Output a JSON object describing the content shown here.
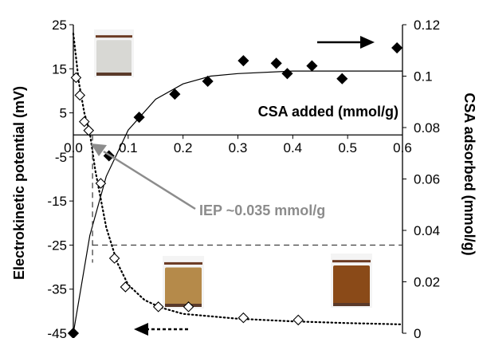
{
  "chart_data": {
    "type": "scatter",
    "x_axis": {
      "label": "CSA added (mmol/g)",
      "range": [
        0,
        0.6
      ],
      "ticks": [
        0.0,
        0.1,
        0.2,
        0.3,
        0.4,
        0.5,
        0.6
      ],
      "tick_labels": [
        "0.0",
        "0.1",
        "0.2",
        "0.3",
        "0.4",
        "0.5",
        "0.6"
      ],
      "ticks_at_y": 0
    },
    "y_left": {
      "label": "Electrokinetic potential (mV)",
      "range": [
        -45,
        25
      ],
      "ticks": [
        -45,
        -35,
        -25,
        -15,
        -5,
        5,
        15,
        25
      ],
      "tick_labels": [
        "-45",
        "-35",
        "-25",
        "-15",
        "-5",
        "5",
        "15",
        "25"
      ]
    },
    "y_right": {
      "label": "CSA adsorbed (mmol/g)",
      "range": [
        0,
        0.12
      ],
      "ticks": [
        0,
        0.02,
        0.04,
        0.06,
        0.08,
        0.1,
        0.12
      ],
      "tick_labels": [
        "0",
        "0.02",
        "0.04",
        "0.06",
        "0.08",
        "0.1",
        "0.12"
      ]
    },
    "series": [
      {
        "marker": "filled-diamond",
        "axis": "right",
        "color": "#000000",
        "x": [
          0.0,
          0.065,
          0.12,
          0.185,
          0.245,
          0.31,
          0.37,
          0.39,
          0.435,
          0.49,
          0.59
        ],
        "y": [
          0.0,
          0.069,
          0.084,
          0.093,
          0.098,
          0.106,
          0.105,
          0.101,
          0.104,
          0.099,
          0.111
        ],
        "fit": {
          "style": "solid",
          "x": [
            0.0,
            0.03,
            0.06,
            0.1,
            0.15,
            0.2,
            0.25,
            0.3,
            0.4,
            0.5,
            0.6
          ],
          "y": [
            0.0,
            0.038,
            0.061,
            0.079,
            0.091,
            0.097,
            0.1,
            0.101,
            0.102,
            0.102,
            0.102
          ]
        }
      },
      {
        "marker": "open-diamond",
        "axis": "left",
        "color": "#000000",
        "x": [
          0.005,
          0.012,
          0.02,
          0.028,
          0.05,
          0.075,
          0.095,
          0.155,
          0.21,
          0.31,
          0.41
        ],
        "y": [
          13,
          9,
          3,
          1,
          -11,
          -28,
          -34.5,
          -39,
          -39,
          -41.5,
          -42
        ],
        "fit": {
          "style": "dotted",
          "x": [
            0.0,
            0.01,
            0.02,
            0.03,
            0.04,
            0.06,
            0.08,
            0.1,
            0.13,
            0.16,
            0.2,
            0.3,
            0.4,
            0.5,
            0.6
          ],
          "y": [
            23,
            12,
            5,
            0.5,
            -8,
            -21,
            -29,
            -34,
            -37.5,
            -39.2,
            -40.6,
            -41.7,
            -42.3,
            -42.7,
            -43
          ]
        }
      }
    ],
    "annotations": {
      "iep_label": "IEP ~0.035 mmol/g",
      "iep_x": 0.035,
      "iep_color": "#8c8c8c",
      "reference_line_left_y": -25,
      "right_axis_arrow": "solid, pointing right toward CSA adsorbed axis",
      "left_axis_arrow": "dotted, pointing left toward electrokinetic potential axis"
    },
    "insets": [
      {
        "name": "vial-low-csa",
        "liquid_color": "#d8d8d4"
      },
      {
        "name": "vial-mid-csa",
        "liquid_color": "#b58a4a"
      },
      {
        "name": "vial-high-csa",
        "liquid_color": "#8a4a18"
      }
    ],
    "grid": false,
    "legend": "none"
  }
}
